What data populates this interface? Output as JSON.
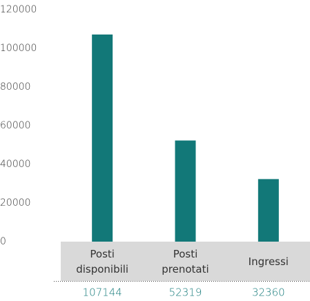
{
  "chart_data": {
    "type": "bar",
    "categories": [
      "Posti disponibili",
      "Posti prenotati",
      "Ingressi"
    ],
    "values": [
      107144,
      52319,
      32360
    ],
    "color": "#127878",
    "ylim": [
      0,
      120000
    ],
    "yticks": [
      0,
      20000,
      40000,
      60000,
      80000,
      100000,
      120000
    ],
    "grid": false
  }
}
